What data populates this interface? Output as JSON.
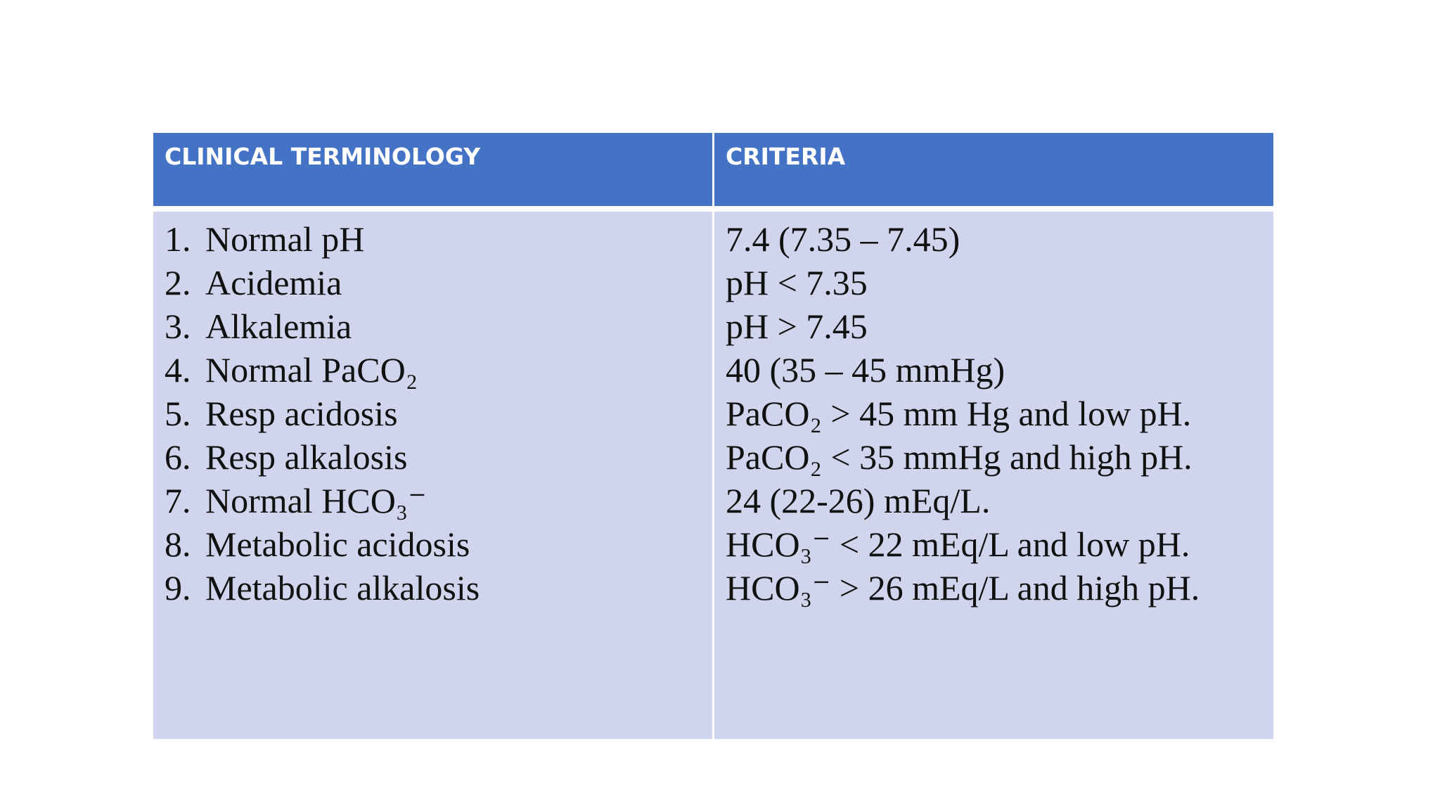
{
  "table": {
    "header": [
      "CLINICAL TERMINOLOGY",
      "CRITERIA"
    ],
    "rows": [
      {
        "number": "1.",
        "term": "Normal pH",
        "criteria": "7.4 (7.35 – 7.45)"
      },
      {
        "number": "2.",
        "term": "Acidemia",
        "criteria": "pH < 7.35"
      },
      {
        "number": "3.",
        "term": "Alkalemia",
        "criteria": "pH > 7.45"
      },
      {
        "number": "4.",
        "term": "Normal PaCO₂",
        "criteria": "40 (35 – 45 mmHg)"
      },
      {
        "number": "5.",
        "term": "Resp acidosis",
        "criteria": "PaCO₂ > 45 mm Hg and low pH."
      },
      {
        "number": "6.",
        "term": "Resp alkalosis",
        "criteria": "PaCO₂ < 35 mmHg and high pH."
      },
      {
        "number": "7.",
        "term": "Normal HCO₃⁻",
        "criteria": "24 (22-26) mEq/L."
      },
      {
        "number": "8.",
        "term": "Metabolic acidosis",
        "criteria": "HCO₃⁻ < 22 mEq/L and low pH."
      },
      {
        "number": "9.",
        "term": "Metabolic alkalosis",
        "criteria": "HCO₃⁻ > 26 mEq/L and high pH."
      }
    ]
  }
}
